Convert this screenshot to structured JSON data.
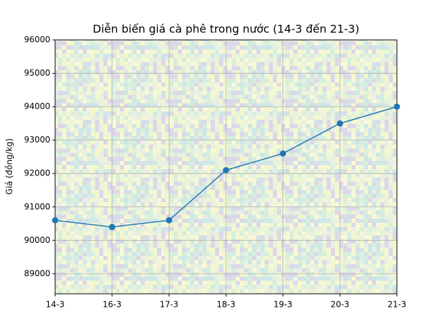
{
  "chart_data": {
    "type": "line",
    "title": "Diễn biến giá cà phê trong nước (14-3 đến 21-3)",
    "y_label": "Giá (đồng/kg)",
    "categories": [
      "14-3",
      "16-3",
      "17-3",
      "18-3",
      "19-3",
      "20-3",
      "21-3"
    ],
    "series": [
      {
        "name": "Giá",
        "color": "#1f77b4",
        "values": [
          90600,
          90400,
          90600,
          92100,
          92600,
          93500,
          94000
        ]
      }
    ],
    "ylim": [
      88400,
      96000
    ],
    "yticks": [
      89000,
      90000,
      91000,
      92000,
      93000,
      94000,
      95000,
      96000
    ],
    "grid": true
  }
}
